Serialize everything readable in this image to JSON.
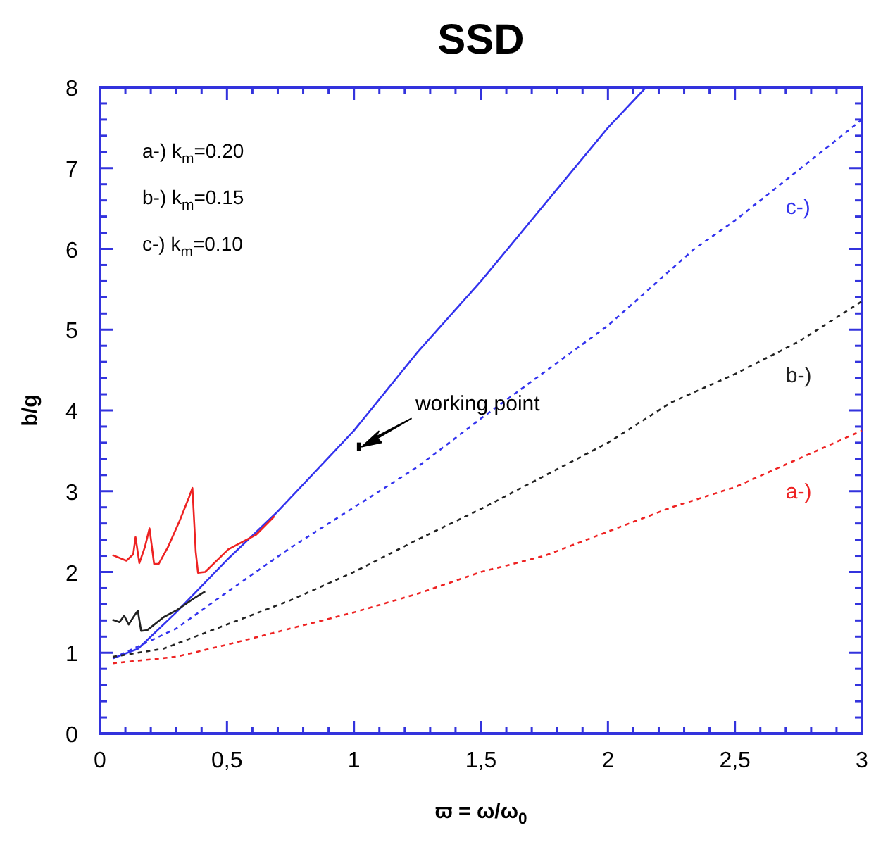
{
  "chart_data": {
    "type": "line",
    "title": "SSD",
    "xlabel": "ϖ = ω/ω$_{0}$",
    "ylabel": "b/g",
    "xlim": [
      0,
      3
    ],
    "ylim": [
      0,
      8
    ],
    "xticks": [
      0,
      {
        "value": 0.1,
        "label": null
      },
      {
        "value": 0.2,
        "label": null
      },
      {
        "value": 0.3,
        "label": null
      },
      {
        "value": 0.4,
        "label": null
      },
      {
        "value": 0.5,
        "label": "0,5"
      },
      {
        "value": 0.6,
        "label": null
      },
      {
        "value": 0.7,
        "label": null
      },
      {
        "value": 0.8,
        "label": null
      },
      {
        "value": 0.9,
        "label": null
      },
      1,
      {
        "value": 1.1,
        "label": null
      },
      {
        "value": 1.2,
        "label": null
      },
      {
        "value": 1.3,
        "label": null
      },
      {
        "value": 1.4,
        "label": null
      },
      {
        "value": 1.5,
        "label": "1,5"
      },
      {
        "value": 1.6,
        "label": null
      },
      {
        "value": 1.7,
        "label": null
      },
      {
        "value": 1.8,
        "label": null
      },
      {
        "value": 1.9,
        "label": null
      },
      2,
      {
        "value": 2.1,
        "label": null
      },
      {
        "value": 2.2,
        "label": null
      },
      {
        "value": 2.3,
        "label": null
      },
      {
        "value": 2.4,
        "label": null
      },
      {
        "value": 2.5,
        "label": "2,5"
      },
      {
        "value": 2.6,
        "label": null
      },
      {
        "value": 2.7,
        "label": null
      },
      {
        "value": 2.8,
        "label": null
      },
      {
        "value": 2.9,
        "label": null
      },
      3
    ],
    "yticks": [
      0,
      {
        "value": 0.2,
        "label": null
      },
      {
        "value": 0.4,
        "label": null
      },
      {
        "value": 0.6,
        "label": null
      },
      {
        "value": 0.8,
        "label": null
      },
      1,
      {
        "value": 1.2,
        "label": null
      },
      {
        "value": 1.4,
        "label": null
      },
      {
        "value": 1.6,
        "label": null
      },
      {
        "value": 1.8,
        "label": null
      },
      2,
      {
        "value": 2.2,
        "label": null
      },
      {
        "value": 2.4,
        "label": null
      },
      {
        "value": 2.6,
        "label": null
      },
      {
        "value": 2.8,
        "label": null
      },
      3,
      {
        "value": 3.2,
        "label": null
      },
      {
        "value": 3.4,
        "label": null
      },
      {
        "value": 3.6,
        "label": null
      },
      {
        "value": 3.8,
        "label": null
      },
      4,
      {
        "value": 4.2,
        "label": null
      },
      {
        "value": 4.4,
        "label": null
      },
      {
        "value": 4.6,
        "label": null
      },
      {
        "value": 4.8,
        "label": null
      },
      5,
      {
        "value": 5.2,
        "label": null
      },
      {
        "value": 5.4,
        "label": null
      },
      {
        "value": 5.6,
        "label": null
      },
      {
        "value": 5.8,
        "label": null
      },
      6,
      {
        "value": 6.2,
        "label": null
      },
      {
        "value": 6.4,
        "label": null
      },
      {
        "value": 6.6,
        "label": null
      },
      {
        "value": 6.8,
        "label": null
      },
      7,
      {
        "value": 7.2,
        "label": null
      },
      {
        "value": 7.4,
        "label": null
      },
      {
        "value": 7.6,
        "label": null
      },
      {
        "value": 7.8,
        "label": null
      },
      8
    ],
    "grid": false,
    "marker": "none",
    "series": [
      {
        "color": "#3333ee",
        "line_style": "solid",
        "x": [
          0.05,
          0.15,
          0.3,
          0.5,
          0.7,
          1.0,
          1.25,
          1.5,
          2.0,
          2.15
        ],
        "values": [
          0.93,
          1.05,
          1.5,
          2.15,
          2.75,
          3.75,
          4.72,
          5.6,
          7.5,
          8
        ]
      },
      {
        "name": "c-)",
        "color": "#3333ee",
        "line_style": "dashed",
        "x": [
          0.05,
          0.3,
          0.5,
          0.75,
          1,
          1.25,
          1.5,
          2,
          2.34,
          2.5,
          3
        ],
        "values": [
          0.93,
          1.3,
          1.75,
          2.3,
          2.8,
          3.3,
          3.9,
          5.05,
          6.0,
          6.35,
          7.6
        ]
      },
      {
        "name": "b-)",
        "color": "#222222",
        "line_style": "dashed",
        "x": [
          0.05,
          0.25,
          0.5,
          0.75,
          1,
          1.25,
          1.5,
          2,
          2.25,
          2.5,
          2.75,
          3
        ],
        "values": [
          0.95,
          1.05,
          1.35,
          1.65,
          2.0,
          2.4,
          2.78,
          3.6,
          4.1,
          4.45,
          4.85,
          5.35
        ]
      },
      {
        "name": "a-)",
        "color": "#ee2222",
        "line_style": "dashed",
        "x": [
          0.05,
          0.3,
          0.5,
          0.75,
          1,
          1.25,
          1.5,
          1.75,
          2,
          2.25,
          2.5,
          2.75,
          3
        ],
        "values": [
          0.87,
          0.95,
          1.1,
          1.3,
          1.5,
          1.73,
          2.0,
          2.2,
          2.5,
          2.8,
          3.05,
          3.4,
          3.75
        ]
      },
      {
        "color": "#ee2222",
        "line_style": "solid",
        "x": [
          0.049,
          0.104,
          0.131,
          0.14,
          0.155,
          0.177,
          0.195,
          0.213,
          0.231,
          0.268,
          0.313,
          0.35,
          0.364,
          0.377,
          0.386,
          0.414,
          0.505,
          0.614,
          0.687
        ],
        "values": [
          2.21,
          2.14,
          2.22,
          2.43,
          2.11,
          2.31,
          2.54,
          2.1,
          2.1,
          2.31,
          2.63,
          2.92,
          3.04,
          2.25,
          1.99,
          2.0,
          2.28,
          2.46,
          2.69
        ]
      },
      {
        "color": "#222222",
        "line_style": "solid",
        "x": [
          0.049,
          0.077,
          0.095,
          0.113,
          0.131,
          0.149,
          0.162,
          0.186,
          0.25,
          0.304,
          0.368,
          0.414
        ],
        "values": [
          1.41,
          1.38,
          1.46,
          1.35,
          1.44,
          1.52,
          1.27,
          1.28,
          1.44,
          1.53,
          1.67,
          1.76
        ]
      },
      {
        "type": "scatter",
        "color": "#000000",
        "marker": "square",
        "x": [
          1.02
        ],
        "values": [
          3.55
        ]
      }
    ],
    "annotations": [
      "a-) k$_{m}$=0.20",
      "b-) k$_{m}$=0.15",
      "c-) k$_{m}$=0.10",
      "working point"
    ]
  }
}
